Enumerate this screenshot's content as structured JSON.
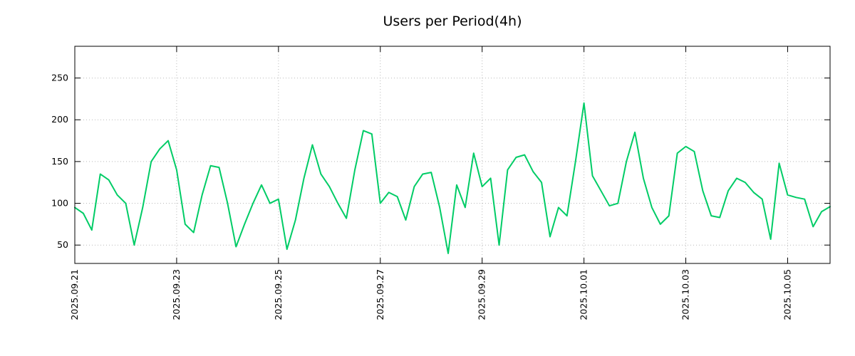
{
  "chart_data": {
    "type": "line",
    "title": "Users per Period(4h)",
    "xlabel": "",
    "ylabel": "",
    "x_start": "2025-09-21 00:00",
    "x_step_hours": 4,
    "x_tick_labels": [
      "2025.09.21",
      "2025.09.23",
      "2025.09.25",
      "2025.09.27",
      "2025.09.29",
      "2025.10.01",
      "2025.10.03",
      "2025.10.05"
    ],
    "x_tick_day_offsets": [
      0,
      2,
      4,
      6,
      8,
      10,
      12,
      14
    ],
    "y_ticks": [
      50,
      100,
      150,
      200,
      250
    ],
    "ylim": [
      28,
      288
    ],
    "grid": true,
    "legend": "none",
    "series_name": "Users",
    "values": [
      95,
      88,
      68,
      135,
      128,
      110,
      100,
      50,
      95,
      150,
      165,
      175,
      140,
      75,
      65,
      110,
      145,
      143,
      100,
      48,
      75,
      100,
      122,
      100,
      105,
      45,
      80,
      130,
      170,
      135,
      120,
      100,
      82,
      140,
      187,
      183,
      100,
      113,
      108,
      80,
      120,
      135,
      137,
      95,
      40,
      122,
      95,
      160,
      120,
      130,
      50,
      140,
      155,
      158,
      138,
      125,
      60,
      95,
      85,
      150,
      220,
      133,
      115,
      97,
      100,
      150,
      185,
      130,
      95,
      75,
      85,
      160,
      168,
      162,
      115,
      85,
      83,
      115,
      130,
      125,
      113,
      105,
      57,
      148,
      110,
      107,
      105,
      72,
      90,
      96
    ],
    "line_color": "#00cc66",
    "grid_color": "#b9b9b9",
    "border_color": "#000000",
    "background_color": "#ffffff"
  }
}
